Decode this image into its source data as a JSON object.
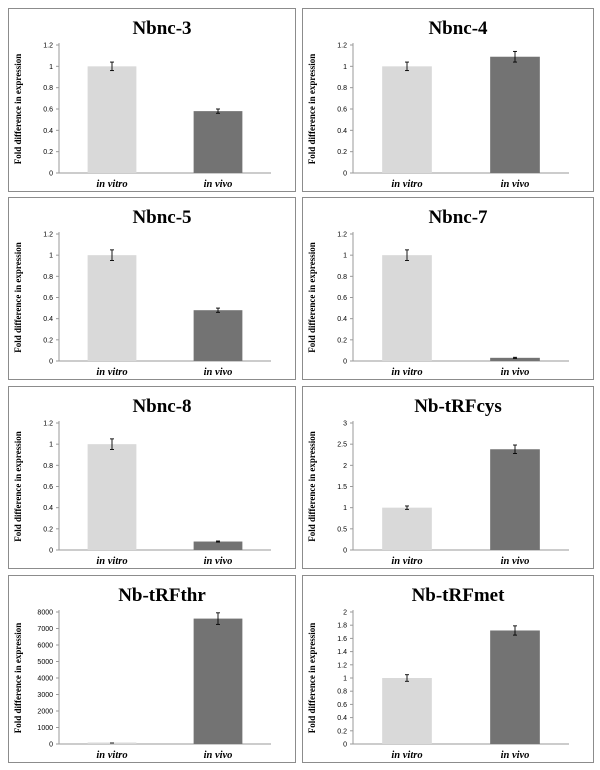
{
  "chart_data": [
    {
      "type": "bar",
      "title": "Nbnc-3",
      "ylabel": "Fold difference in expression",
      "categories": [
        "in vitro",
        "in vivo"
      ],
      "values": [
        1.0,
        0.58
      ],
      "errors": [
        0.04,
        0.02
      ],
      "ylim": [
        0,
        1.2
      ],
      "yticks": [
        "0",
        "0.2",
        "0.4",
        "0.6",
        "0.8",
        "1",
        "1.2"
      ],
      "colors": [
        "#d9d9d9",
        "#737373"
      ]
    },
    {
      "type": "bar",
      "title": "Nbnc-4",
      "ylabel": "Fold difference in expression",
      "categories": [
        "in vitro",
        "in vivo"
      ],
      "values": [
        1.0,
        1.09
      ],
      "errors": [
        0.04,
        0.05
      ],
      "ylim": [
        0,
        1.2
      ],
      "yticks": [
        "0",
        "0.2",
        "0.4",
        "0.6",
        "0.8",
        "1",
        "1.2"
      ],
      "colors": [
        "#d9d9d9",
        "#737373"
      ]
    },
    {
      "type": "bar",
      "title": "Nbnc-5",
      "ylabel": "Fold difference in expression",
      "categories": [
        "in vitro",
        "in vivo"
      ],
      "values": [
        1.0,
        0.48
      ],
      "errors": [
        0.05,
        0.02
      ],
      "ylim": [
        0,
        1.2
      ],
      "yticks": [
        "0",
        "0.2",
        "0.4",
        "0.6",
        "0.8",
        "1",
        "1.2"
      ],
      "colors": [
        "#d9d9d9",
        "#737373"
      ]
    },
    {
      "type": "bar",
      "title": "Nbnc-7",
      "ylabel": "Fold difference in expression",
      "categories": [
        "in vitro",
        "in vivo"
      ],
      "values": [
        1.0,
        0.03
      ],
      "errors": [
        0.05,
        0.005
      ],
      "ylim": [
        0,
        1.2
      ],
      "yticks": [
        "0",
        "0.2",
        "0.4",
        "0.6",
        "0.8",
        "1",
        "1.2"
      ],
      "colors": [
        "#d9d9d9",
        "#737373"
      ]
    },
    {
      "type": "bar",
      "title": "Nbnc-8",
      "ylabel": "Fold difference in expression",
      "categories": [
        "in vitro",
        "in vivo"
      ],
      "values": [
        1.0,
        0.08
      ],
      "errors": [
        0.05,
        0.005
      ],
      "ylim": [
        0,
        1.2
      ],
      "yticks": [
        "0",
        "0.2",
        "0.4",
        "0.6",
        "0.8",
        "1",
        "1.2"
      ],
      "colors": [
        "#d9d9d9",
        "#737373"
      ]
    },
    {
      "type": "bar",
      "title": "Nb-tRFcys",
      "ylabel": "Fold difference in expression",
      "categories": [
        "in vitro",
        "in vivo"
      ],
      "values": [
        1.0,
        2.38
      ],
      "errors": [
        0.04,
        0.1
      ],
      "ylim": [
        0,
        3
      ],
      "yticks": [
        "0",
        "0.5",
        "1",
        "1.5",
        "2",
        "2.5",
        "3"
      ],
      "colors": [
        "#d9d9d9",
        "#737373"
      ]
    },
    {
      "type": "bar",
      "title": "Nb-tRFthr",
      "ylabel": "Fold difference in expression",
      "categories": [
        "in vitro",
        "in vivo"
      ],
      "values": [
        1,
        7600
      ],
      "errors": [
        0,
        350
      ],
      "ylim": [
        0,
        8000
      ],
      "yticks": [
        "0",
        "1000",
        "2000",
        "3000",
        "4000",
        "5000",
        "6000",
        "7000",
        "8000"
      ],
      "colors": [
        "#d9d9d9",
        "#737373"
      ]
    },
    {
      "type": "bar",
      "title": "Nb-tRFmet",
      "ylabel": "Fold difference in expression",
      "categories": [
        "in vitro",
        "in vivo"
      ],
      "values": [
        1.0,
        1.72
      ],
      "errors": [
        0.05,
        0.07
      ],
      "ylim": [
        0,
        2
      ],
      "yticks": [
        "0",
        "0.2",
        "0.4",
        "0.6",
        "0.8",
        "1",
        "1.2",
        "1.4",
        "1.6",
        "1.8",
        "2"
      ],
      "colors": [
        "#d9d9d9",
        "#737373"
      ]
    }
  ]
}
